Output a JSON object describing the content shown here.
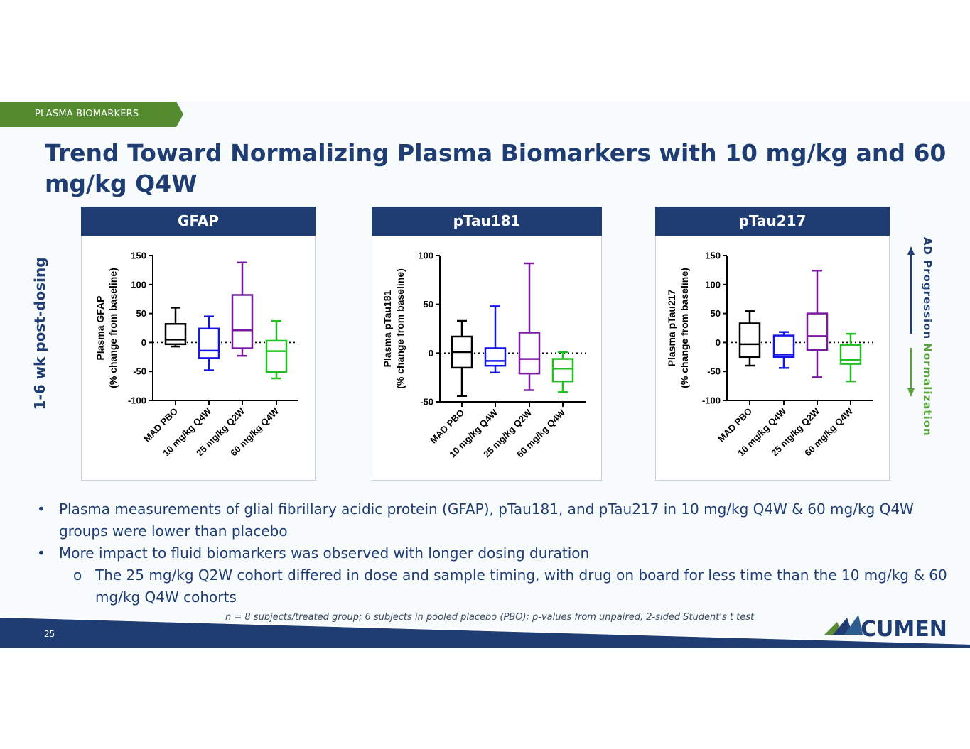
{
  "section_tag": "PLASMA BIOMARKERS",
  "title": "Trend Toward Normalizing Plasma Biomarkers with 10 mg/kg and 60 mg/kg Q4W",
  "left_label": "1-6 wk post-dosing",
  "right_labels": {
    "up": "AD Progression",
    "down": "Normalization"
  },
  "colors": {
    "navy": "#1f3c73",
    "green": "#5a8a33",
    "normal_green": "#5aa33a",
    "pbo": "#000000",
    "q4w10": "#1414e6",
    "q2w25": "#7a1aa0",
    "q4w60": "#1fbf1f"
  },
  "panels": [
    {
      "header": "GFAP"
    },
    {
      "header": "pTau181"
    },
    {
      "header": "pTau217"
    }
  ],
  "chart_data": [
    {
      "type": "boxplot",
      "title": "GFAP",
      "ylabel_line1": "Plasma GFAP",
      "ylabel_line2": "(% change from baseline)",
      "ylim": [
        -100,
        150
      ],
      "yticks": [
        150,
        100,
        50,
        0,
        -50,
        -100
      ],
      "categories": [
        "MAD PBO",
        "10 mg/kg Q4W",
        "25 mg/kg Q2W",
        "60 mg/kg Q4W"
      ],
      "boxes": [
        {
          "min": -7,
          "q1": -3,
          "median": 5,
          "q3": 32,
          "max": 60
        },
        {
          "min": -48,
          "q1": -27,
          "median": -14,
          "q3": 24,
          "max": 45
        },
        {
          "min": -23,
          "q1": -10,
          "median": 21,
          "q3": 82,
          "max": 138
        },
        {
          "min": -62,
          "q1": -51,
          "median": -15,
          "q3": 3,
          "max": 37
        }
      ]
    },
    {
      "type": "boxplot",
      "title": "pTau181",
      "ylabel_line1": "Plasma pTau181",
      "ylabel_line2": "(% change from baseline)",
      "ylim": [
        -50,
        100
      ],
      "yticks": [
        100,
        50,
        0,
        -50
      ],
      "categories": [
        "MAD PBO",
        "10 mg/kg Q4W",
        "25 mg/kg Q2W",
        "60 mg/kg Q4W"
      ],
      "boxes": [
        {
          "min": -44,
          "q1": -15,
          "median": 1,
          "q3": 17,
          "max": 33
        },
        {
          "min": -20,
          "q1": -13,
          "median": -8,
          "q3": 5,
          "max": 48
        },
        {
          "min": -38,
          "q1": -21,
          "median": -6,
          "q3": 21,
          "max": 92
        },
        {
          "min": -40,
          "q1": -29,
          "median": -16,
          "q3": -6,
          "max": 1
        }
      ]
    },
    {
      "type": "boxplot",
      "title": "pTau217",
      "ylabel_line1": "Plasma pTau217",
      "ylabel_line2": "(% change from baseline)",
      "ylim": [
        -100,
        150
      ],
      "yticks": [
        150,
        100,
        50,
        0,
        -50,
        -100
      ],
      "categories": [
        "MAD PBO",
        "10 mg/kg Q4W",
        "25 mg/kg Q2W",
        "60 mg/kg Q4W"
      ],
      "boxes": [
        {
          "min": -40,
          "q1": -25,
          "median": -3,
          "q3": 33,
          "max": 54
        },
        {
          "min": -44,
          "q1": -25,
          "median": -21,
          "q3": 12,
          "max": 18
        },
        {
          "min": -60,
          "q1": -13,
          "median": 11,
          "q3": 50,
          "max": 124
        },
        {
          "min": -67,
          "q1": -37,
          "median": -30,
          "q3": -4,
          "max": 15
        }
      ]
    }
  ],
  "bullets": [
    "Plasma measurements of glial fibrillary acidic protein (GFAP), pTau181, and pTau217 in 10 mg/kg Q4W & 60 mg/kg Q4W groups were lower than placebo",
    "More impact to fluid biomarkers was observed with longer dosing duration"
  ],
  "sub_bullets": [
    "The 25 mg/kg Q2W cohort differed in dose and sample timing, with drug on board for less time than the 10 mg/kg & 60 mg/kg Q4W cohorts"
  ],
  "bullet_symbol": "•",
  "sub_bullet_symbol": "o",
  "footnote": "n = 8 subjects/treated group; 6 subjects in pooled placebo (PBO); p-values from unpaired, 2-sided Student's t test",
  "page_number": "25",
  "logo_text": "CUMEN"
}
